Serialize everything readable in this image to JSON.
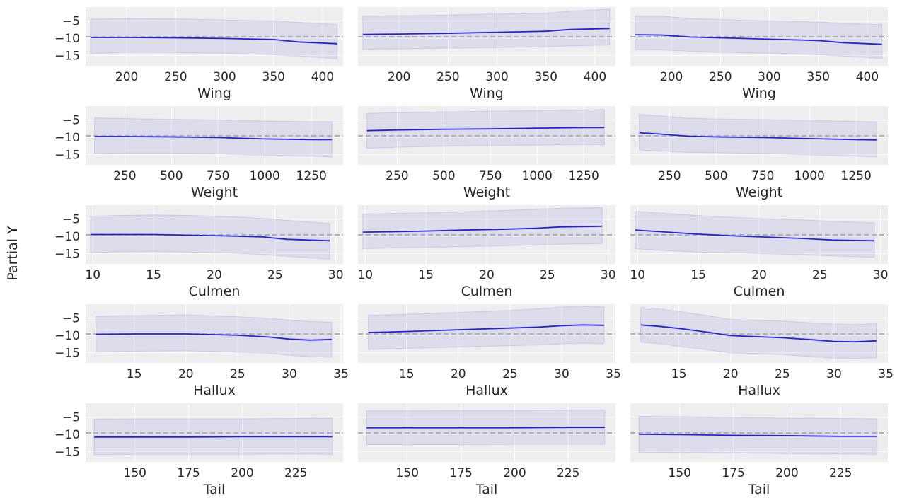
{
  "figure": {
    "ylabel": "Partial Y"
  },
  "colors": {
    "panel_bg": "#eeeeee",
    "grid": "#ffffff",
    "line": "#2222dd",
    "band": "#7777dd",
    "reference": "#aaaaaa",
    "text": "#262626"
  },
  "chart_data": [
    {
      "type": "line",
      "xlabel": "Wing",
      "xlim": [
        158,
        421
      ],
      "ylim": [
        -18,
        -1
      ],
      "x_ticks": [
        "200",
        "250",
        "300",
        "350",
        "400"
      ],
      "y_ticks": [
        "−5",
        "−10",
        "−15"
      ],
      "x": [
        163,
        200,
        250,
        300,
        350,
        375,
        415
      ],
      "mean": [
        -9.8,
        -9.8,
        -9.9,
        -10.1,
        -10.4,
        -11.1,
        -11.6
      ],
      "lower": [
        -14.5,
        -14.1,
        -14.2,
        -14.4,
        -14.8,
        -15.2,
        -16.0
      ],
      "upper": [
        -4.5,
        -4.3,
        -4.4,
        -4.7,
        -5.0,
        -5.4,
        -6.0
      ],
      "reference": -9.6
    },
    {
      "type": "line",
      "xlabel": "Wing",
      "xlim": [
        158,
        421
      ],
      "ylim": [
        -18,
        -1
      ],
      "x_ticks": [
        "200",
        "250",
        "300",
        "350",
        "400"
      ],
      "y_ticks": [
        "−5",
        "−10",
        "−15"
      ],
      "x": [
        163,
        200,
        250,
        300,
        350,
        375,
        415
      ],
      "mean": [
        -8.9,
        -8.8,
        -8.6,
        -8.3,
        -8.0,
        -7.5,
        -7.2
      ],
      "lower": [
        -13.2,
        -13.1,
        -12.9,
        -12.7,
        -12.5,
        -12.2,
        -12.0
      ],
      "upper": [
        -3.6,
        -3.5,
        -3.3,
        -3.0,
        -2.8,
        -2.2,
        -1.6
      ],
      "reference": -9.6
    },
    {
      "type": "line",
      "xlabel": "Wing",
      "xlim": [
        158,
        421
      ],
      "ylim": [
        -18,
        -1
      ],
      "x_ticks": [
        "200",
        "250",
        "300",
        "350",
        "400"
      ],
      "y_ticks": [
        "−5",
        "−10",
        "−15"
      ],
      "x": [
        163,
        190,
        220,
        250,
        300,
        350,
        375,
        415
      ],
      "mean": [
        -9.0,
        -9.1,
        -9.7,
        -9.9,
        -10.3,
        -10.7,
        -11.3,
        -11.8
      ],
      "lower": [
        -13.3,
        -13.4,
        -13.8,
        -14.1,
        -14.4,
        -14.8,
        -15.2,
        -15.9
      ],
      "upper": [
        -3.6,
        -3.6,
        -4.3,
        -4.6,
        -5.0,
        -5.3,
        -5.7,
        -6.1
      ],
      "reference": -9.6
    },
    {
      "type": "line",
      "xlabel": "Weight",
      "xlim": [
        40,
        1420
      ],
      "ylim": [
        -18,
        -1
      ],
      "x_ticks": [
        "250",
        "500",
        "750",
        "1000",
        "1250"
      ],
      "y_ticks": [
        "−5",
        "−10",
        "−15"
      ],
      "x": [
        88,
        250,
        500,
        750,
        1000,
        1250,
        1360
      ],
      "mean": [
        -9.8,
        -9.8,
        -9.9,
        -10.1,
        -10.5,
        -10.7,
        -10.7
      ],
      "lower": [
        -14.8,
        -14.6,
        -14.6,
        -14.8,
        -15.2,
        -15.5,
        -15.7
      ],
      "upper": [
        -4.4,
        -4.6,
        -4.8,
        -5.0,
        -5.3,
        -5.5,
        -5.5
      ],
      "reference": -9.6
    },
    {
      "type": "line",
      "xlabel": "Weight",
      "xlim": [
        40,
        1420
      ],
      "ylim": [
        -18,
        -1
      ],
      "x_ticks": [
        "250",
        "500",
        "750",
        "1000",
        "1250"
      ],
      "y_ticks": [
        "−5",
        "−10",
        "−15"
      ],
      "x": [
        88,
        250,
        500,
        750,
        1000,
        1250,
        1360
      ],
      "mean": [
        -8.1,
        -7.9,
        -7.7,
        -7.6,
        -7.4,
        -7.2,
        -7.2
      ],
      "lower": [
        -13.2,
        -12.9,
        -12.6,
        -12.4,
        -12.3,
        -12.1,
        -12.2
      ],
      "upper": [
        -3.1,
        -2.9,
        -2.7,
        -2.5,
        -2.3,
        -2.1,
        -2.0
      ],
      "reference": -9.6
    },
    {
      "type": "line",
      "xlabel": "Weight",
      "xlim": [
        40,
        1420
      ],
      "ylim": [
        -18,
        -1
      ],
      "x_ticks": [
        "250",
        "500",
        "750",
        "1000",
        "1250"
      ],
      "y_ticks": [
        "−5",
        "−10",
        "−15"
      ],
      "x": [
        88,
        200,
        350,
        500,
        750,
        1000,
        1250,
        1360
      ],
      "mean": [
        -8.7,
        -9.1,
        -9.7,
        -9.9,
        -10.1,
        -10.4,
        -10.7,
        -10.8
      ],
      "lower": [
        -13.7,
        -14.0,
        -14.4,
        -14.5,
        -14.7,
        -15.1,
        -15.5,
        -15.7
      ],
      "upper": [
        -3.4,
        -3.8,
        -4.5,
        -4.7,
        -4.9,
        -5.1,
        -5.4,
        -5.6
      ],
      "reference": -9.6
    },
    {
      "type": "line",
      "xlabel": "Culmen",
      "xlim": [
        9.4,
        30.6
      ],
      "ylim": [
        -18,
        -1
      ],
      "x_ticks": [
        "10",
        "15",
        "20",
        "25",
        "30"
      ],
      "y_ticks": [
        "−5",
        "−10",
        "−15"
      ],
      "x": [
        9.8,
        12,
        15,
        18,
        21,
        24,
        26,
        29.5
      ],
      "mean": [
        -9.5,
        -9.5,
        -9.5,
        -9.7,
        -9.9,
        -10.2,
        -10.9,
        -11.3
      ],
      "lower": [
        -14.8,
        -14.5,
        -14.4,
        -14.6,
        -14.8,
        -15.3,
        -15.8,
        -16.6
      ],
      "upper": [
        -4.2,
        -4.0,
        -3.8,
        -4.0,
        -4.3,
        -4.8,
        -5.4,
        -6.3
      ],
      "reference": -9.6
    },
    {
      "type": "line",
      "xlabel": "Culmen",
      "xlim": [
        9.4,
        30.6
      ],
      "ylim": [
        -18,
        -1
      ],
      "x_ticks": [
        "10",
        "15",
        "20",
        "25",
        "30"
      ],
      "y_ticks": [
        "−5",
        "−10",
        "−15"
      ],
      "x": [
        9.8,
        12,
        15,
        18,
        21,
        24,
        26,
        29.5
      ],
      "mean": [
        -8.8,
        -8.7,
        -8.5,
        -8.2,
        -8.0,
        -7.7,
        -7.3,
        -7.1
      ],
      "lower": [
        -13.6,
        -13.4,
        -13.2,
        -13.0,
        -12.8,
        -12.5,
        -12.3,
        -12.1
      ],
      "upper": [
        -3.6,
        -3.4,
        -3.2,
        -2.9,
        -2.6,
        -2.2,
        -1.9,
        -1.7
      ],
      "reference": -9.6
    },
    {
      "type": "line",
      "xlabel": "Culmen",
      "xlim": [
        9.4,
        30.6
      ],
      "ylim": [
        -18,
        -1
      ],
      "x_ticks": [
        "10",
        "15",
        "20",
        "25",
        "30"
      ],
      "y_ticks": [
        "−5",
        "−10",
        "−15"
      ],
      "x": [
        9.8,
        12,
        15,
        18,
        21,
        24,
        26,
        29.5
      ],
      "mean": [
        -8.2,
        -8.7,
        -9.4,
        -9.9,
        -10.3,
        -10.7,
        -11.1,
        -11.3
      ],
      "lower": [
        -13.6,
        -14.1,
        -14.6,
        -14.8,
        -15.1,
        -15.4,
        -15.7,
        -16.1
      ],
      "upper": [
        -2.8,
        -3.3,
        -4.0,
        -4.6,
        -5.0,
        -5.3,
        -5.7,
        -6.1
      ],
      "reference": -9.6
    },
    {
      "type": "line",
      "xlabel": "Hallux",
      "xlim": [
        10.3,
        35.2
      ],
      "ylim": [
        -18,
        -1
      ],
      "x_ticks": [
        "15",
        "20",
        "25",
        "30",
        "35"
      ],
      "y_ticks": [
        "−5",
        "−10",
        "−15"
      ],
      "x": [
        11.3,
        15,
        20,
        25,
        28,
        30,
        32,
        34.1
      ],
      "mean": [
        -9.7,
        -9.6,
        -9.6,
        -10.0,
        -10.5,
        -11.1,
        -11.4,
        -11.2
      ],
      "lower": [
        -14.9,
        -14.6,
        -14.5,
        -14.9,
        -15.2,
        -15.8,
        -16.2,
        -16.3
      ],
      "upper": [
        -4.5,
        -4.3,
        -4.1,
        -4.6,
        -5.1,
        -5.6,
        -6.0,
        -6.2
      ],
      "reference": -9.6
    },
    {
      "type": "line",
      "xlabel": "Hallux",
      "xlim": [
        10.3,
        35.2
      ],
      "ylim": [
        -18,
        -1
      ],
      "x_ticks": [
        "15",
        "20",
        "25",
        "30",
        "35"
      ],
      "y_ticks": [
        "−5",
        "−10",
        "−15"
      ],
      "x": [
        11.3,
        15,
        20,
        25,
        28,
        30,
        32,
        34.1
      ],
      "mean": [
        -9.2,
        -8.9,
        -8.4,
        -7.9,
        -7.6,
        -7.2,
        -7.0,
        -7.1
      ],
      "lower": [
        -14.1,
        -13.8,
        -13.4,
        -13.0,
        -12.8,
        -12.5,
        -12.3,
        -12.4
      ],
      "upper": [
        -4.2,
        -3.9,
        -3.4,
        -2.8,
        -2.3,
        -1.8,
        -1.6,
        -1.8
      ],
      "reference": -9.6
    },
    {
      "type": "line",
      "xlabel": "Hallux",
      "xlim": [
        10.3,
        35.2
      ],
      "ylim": [
        -18,
        -1
      ],
      "x_ticks": [
        "15",
        "20",
        "25",
        "30",
        "35"
      ],
      "y_ticks": [
        "−5",
        "−10",
        "−15"
      ],
      "x": [
        11.3,
        13,
        15,
        18,
        20,
        25,
        28,
        30,
        32,
        34.1
      ],
      "mean": [
        -7.0,
        -7.4,
        -8.0,
        -9.2,
        -10.1,
        -10.7,
        -11.3,
        -11.8,
        -11.9,
        -11.6
      ],
      "lower": [
        -12.0,
        -12.4,
        -13.2,
        -14.3,
        -15.1,
        -15.6,
        -16.2,
        -16.6,
        -16.7,
        -16.5
      ],
      "upper": [
        -1.9,
        -2.4,
        -3.1,
        -4.4,
        -5.4,
        -5.9,
        -6.4,
        -6.8,
        -6.9,
        -6.6
      ],
      "reference": -9.6
    },
    {
      "type": "line",
      "xlabel": "Tail",
      "xlim": [
        127,
        247
      ],
      "ylim": [
        -18,
        -1
      ],
      "x_ticks": [
        "150",
        "175",
        "200",
        "225"
      ],
      "y_ticks": [
        "−5",
        "−10",
        "−15"
      ],
      "x": [
        131,
        150,
        175,
        200,
        225,
        242
      ],
      "mean": [
        -10.8,
        -10.8,
        -10.8,
        -10.7,
        -10.7,
        -10.7
      ],
      "lower": [
        -15.9,
        -15.8,
        -15.8,
        -15.8,
        -15.7,
        -15.8
      ],
      "upper": [
        -5.6,
        -5.5,
        -5.5,
        -5.5,
        -5.4,
        -5.3
      ],
      "reference": -9.6
    },
    {
      "type": "line",
      "xlabel": "Tail",
      "xlim": [
        127,
        247
      ],
      "ylim": [
        -18,
        -1
      ],
      "x_ticks": [
        "150",
        "175",
        "200",
        "225"
      ],
      "y_ticks": [
        "−5",
        "−10",
        "−15"
      ],
      "x": [
        131,
        150,
        175,
        200,
        225,
        242
      ],
      "mean": [
        -8.1,
        -8.1,
        -8.1,
        -8.1,
        -8.0,
        -8.0
      ],
      "lower": [
        -13.0,
        -13.0,
        -13.0,
        -12.9,
        -12.9,
        -12.9
      ],
      "upper": [
        -3.2,
        -3.2,
        -3.1,
        -3.1,
        -3.0,
        -3.0
      ],
      "reference": -9.6
    },
    {
      "type": "line",
      "xlabel": "Tail",
      "xlim": [
        127,
        247
      ],
      "ylim": [
        -18,
        -1
      ],
      "x_ticks": [
        "150",
        "175",
        "200",
        "225"
      ],
      "y_ticks": [
        "−5",
        "−10",
        "−15"
      ],
      "x": [
        131,
        150,
        175,
        200,
        225,
        242
      ],
      "mean": [
        -10.0,
        -10.1,
        -10.3,
        -10.4,
        -10.6,
        -10.6
      ],
      "lower": [
        -15.2,
        -15.3,
        -15.4,
        -15.6,
        -15.7,
        -15.8
      ],
      "upper": [
        -4.7,
        -4.9,
        -5.1,
        -5.3,
        -5.4,
        -5.5
      ],
      "reference": -9.6
    }
  ]
}
